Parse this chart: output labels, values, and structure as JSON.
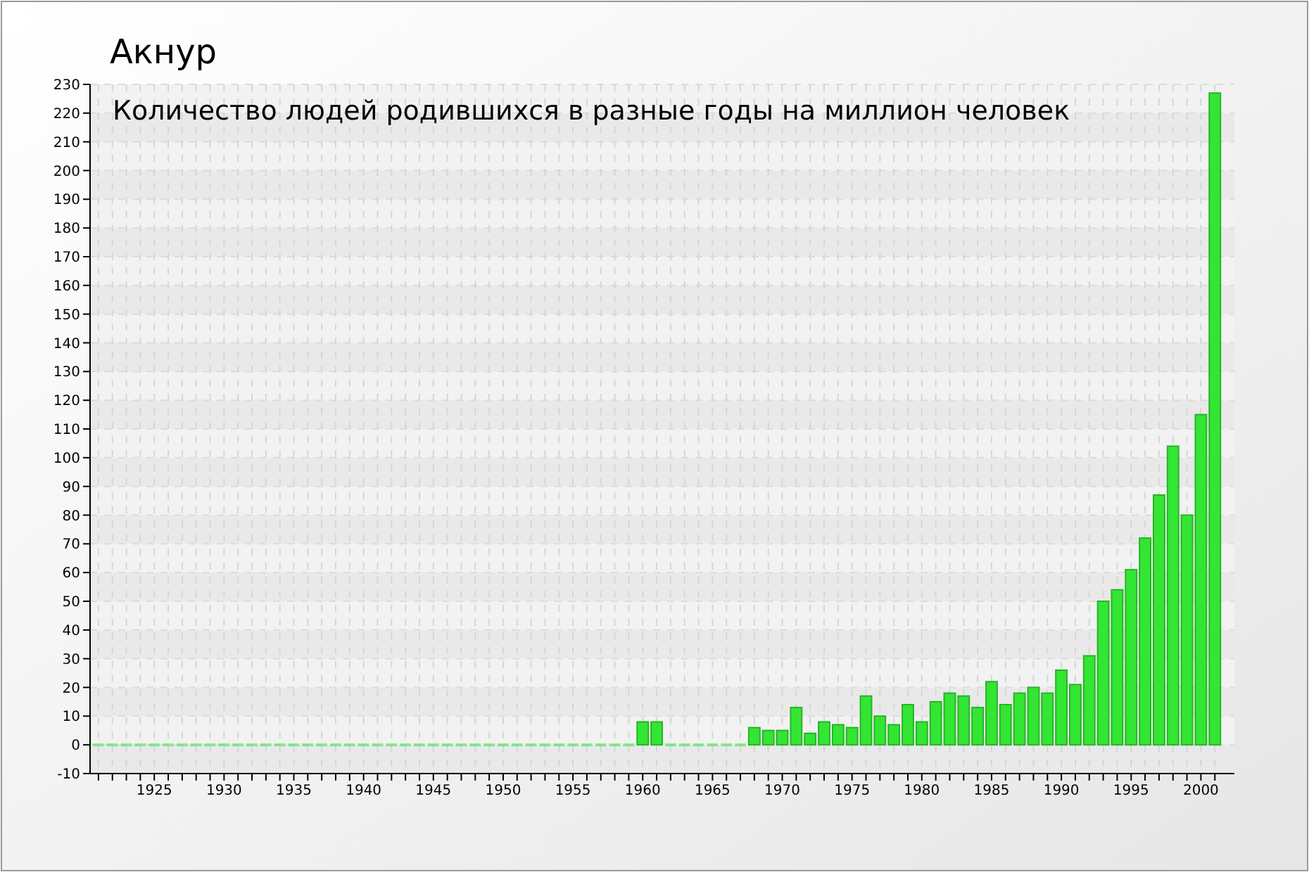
{
  "chart_data": {
    "type": "bar",
    "title": "Акнур",
    "subtitle": "Количество людей родившихся в разные годы на миллион человек",
    "x": [
      1921,
      1922,
      1923,
      1924,
      1925,
      1926,
      1927,
      1928,
      1929,
      1930,
      1931,
      1932,
      1933,
      1934,
      1935,
      1936,
      1937,
      1938,
      1939,
      1940,
      1941,
      1942,
      1943,
      1944,
      1945,
      1946,
      1947,
      1948,
      1949,
      1950,
      1951,
      1952,
      1953,
      1954,
      1955,
      1956,
      1957,
      1958,
      1959,
      1960,
      1961,
      1962,
      1963,
      1964,
      1965,
      1966,
      1967,
      1968,
      1969,
      1970,
      1971,
      1972,
      1973,
      1974,
      1975,
      1976,
      1977,
      1978,
      1979,
      1980,
      1981,
      1982,
      1983,
      1984,
      1985,
      1986,
      1987,
      1988,
      1989,
      1990,
      1991,
      1992,
      1993,
      1994,
      1995,
      1996,
      1997,
      1998,
      1999,
      2000,
      2001
    ],
    "values": [
      0,
      0,
      0,
      0,
      0,
      0,
      0,
      0,
      0,
      0,
      0,
      0,
      0,
      0,
      0,
      0,
      0,
      0,
      0,
      0,
      0,
      0,
      0,
      0,
      0,
      0,
      0,
      0,
      0,
      0,
      0,
      0,
      0,
      0,
      0,
      0,
      0,
      0,
      0,
      8,
      8,
      0,
      0,
      0,
      0,
      0,
      0,
      6,
      5,
      5,
      13,
      4,
      8,
      7,
      6,
      17,
      10,
      7,
      14,
      8,
      15,
      18,
      17,
      13,
      22,
      14,
      18,
      20,
      18,
      26,
      21,
      31,
      50,
      54,
      61,
      72,
      87,
      104,
      80,
      115,
      227
    ],
    "color": "#33e633",
    "xlim": [
      1920.4,
      2002.4
    ],
    "xticks": [
      {
        "value": 1921,
        "label": null
      },
      {
        "value": 1922,
        "label": null
      },
      {
        "value": 1923,
        "label": null
      },
      {
        "value": 1924,
        "label": null
      },
      1925,
      {
        "value": 1926,
        "label": null
      },
      {
        "value": 1927,
        "label": null
      },
      {
        "value": 1928,
        "label": null
      },
      {
        "value": 1929,
        "label": null
      },
      1930,
      {
        "value": 1931,
        "label": null
      },
      {
        "value": 1932,
        "label": null
      },
      {
        "value": 1933,
        "label": null
      },
      {
        "value": 1934,
        "label": null
      },
      1935,
      {
        "value": 1936,
        "label": null
      },
      {
        "value": 1937,
        "label": null
      },
      {
        "value": 1938,
        "label": null
      },
      {
        "value": 1939,
        "label": null
      },
      1940,
      {
        "value": 1941,
        "label": null
      },
      {
        "value": 1942,
        "label": null
      },
      {
        "value": 1943,
        "label": null
      },
      {
        "value": 1944,
        "label": null
      },
      1945,
      {
        "value": 1946,
        "label": null
      },
      {
        "value": 1947,
        "label": null
      },
      {
        "value": 1948,
        "label": null
      },
      {
        "value": 1949,
        "label": null
      },
      1950,
      {
        "value": 1951,
        "label": null
      },
      {
        "value": 1952,
        "label": null
      },
      {
        "value": 1953,
        "label": null
      },
      {
        "value": 1954,
        "label": null
      },
      1955,
      {
        "value": 1956,
        "label": null
      },
      {
        "value": 1957,
        "label": null
      },
      {
        "value": 1958,
        "label": null
      },
      {
        "value": 1959,
        "label": null
      },
      1960,
      {
        "value": 1961,
        "label": null
      },
      {
        "value": 1962,
        "label": null
      },
      {
        "value": 1963,
        "label": null
      },
      {
        "value": 1964,
        "label": null
      },
      1965,
      {
        "value": 1966,
        "label": null
      },
      {
        "value": 1967,
        "label": null
      },
      {
        "value": 1968,
        "label": null
      },
      {
        "value": 1969,
        "label": null
      },
      1970,
      {
        "value": 1971,
        "label": null
      },
      {
        "value": 1972,
        "label": null
      },
      {
        "value": 1973,
        "label": null
      },
      {
        "value": 1974,
        "label": null
      },
      1975,
      {
        "value": 1976,
        "label": null
      },
      {
        "value": 1977,
        "label": null
      },
      {
        "value": 1978,
        "label": null
      },
      {
        "value": 1979,
        "label": null
      },
      1980,
      {
        "value": 1981,
        "label": null
      },
      {
        "value": 1982,
        "label": null
      },
      {
        "value": 1983,
        "label": null
      },
      {
        "value": 1984,
        "label": null
      },
      1985,
      {
        "value": 1986,
        "label": null
      },
      {
        "value": 1987,
        "label": null
      },
      {
        "value": 1988,
        "label": null
      },
      {
        "value": 1989,
        "label": null
      },
      1990,
      {
        "value": 1991,
        "label": null
      },
      {
        "value": 1992,
        "label": null
      },
      {
        "value": 1993,
        "label": null
      },
      {
        "value": 1994,
        "label": null
      },
      1995,
      {
        "value": 1996,
        "label": null
      },
      {
        "value": 1997,
        "label": null
      },
      {
        "value": 1998,
        "label": null
      },
      {
        "value": 1999,
        "label": null
      },
      2000,
      {
        "value": 2001,
        "label": null
      }
    ],
    "ylim": [
      -10,
      230
    ],
    "yticks": [
      -10,
      0,
      10,
      20,
      30,
      40,
      50,
      60,
      70,
      80,
      90,
      100,
      110,
      120,
      130,
      140,
      150,
      160,
      170,
      180,
      190,
      200,
      210,
      220,
      230
    ],
    "grid": true
  }
}
